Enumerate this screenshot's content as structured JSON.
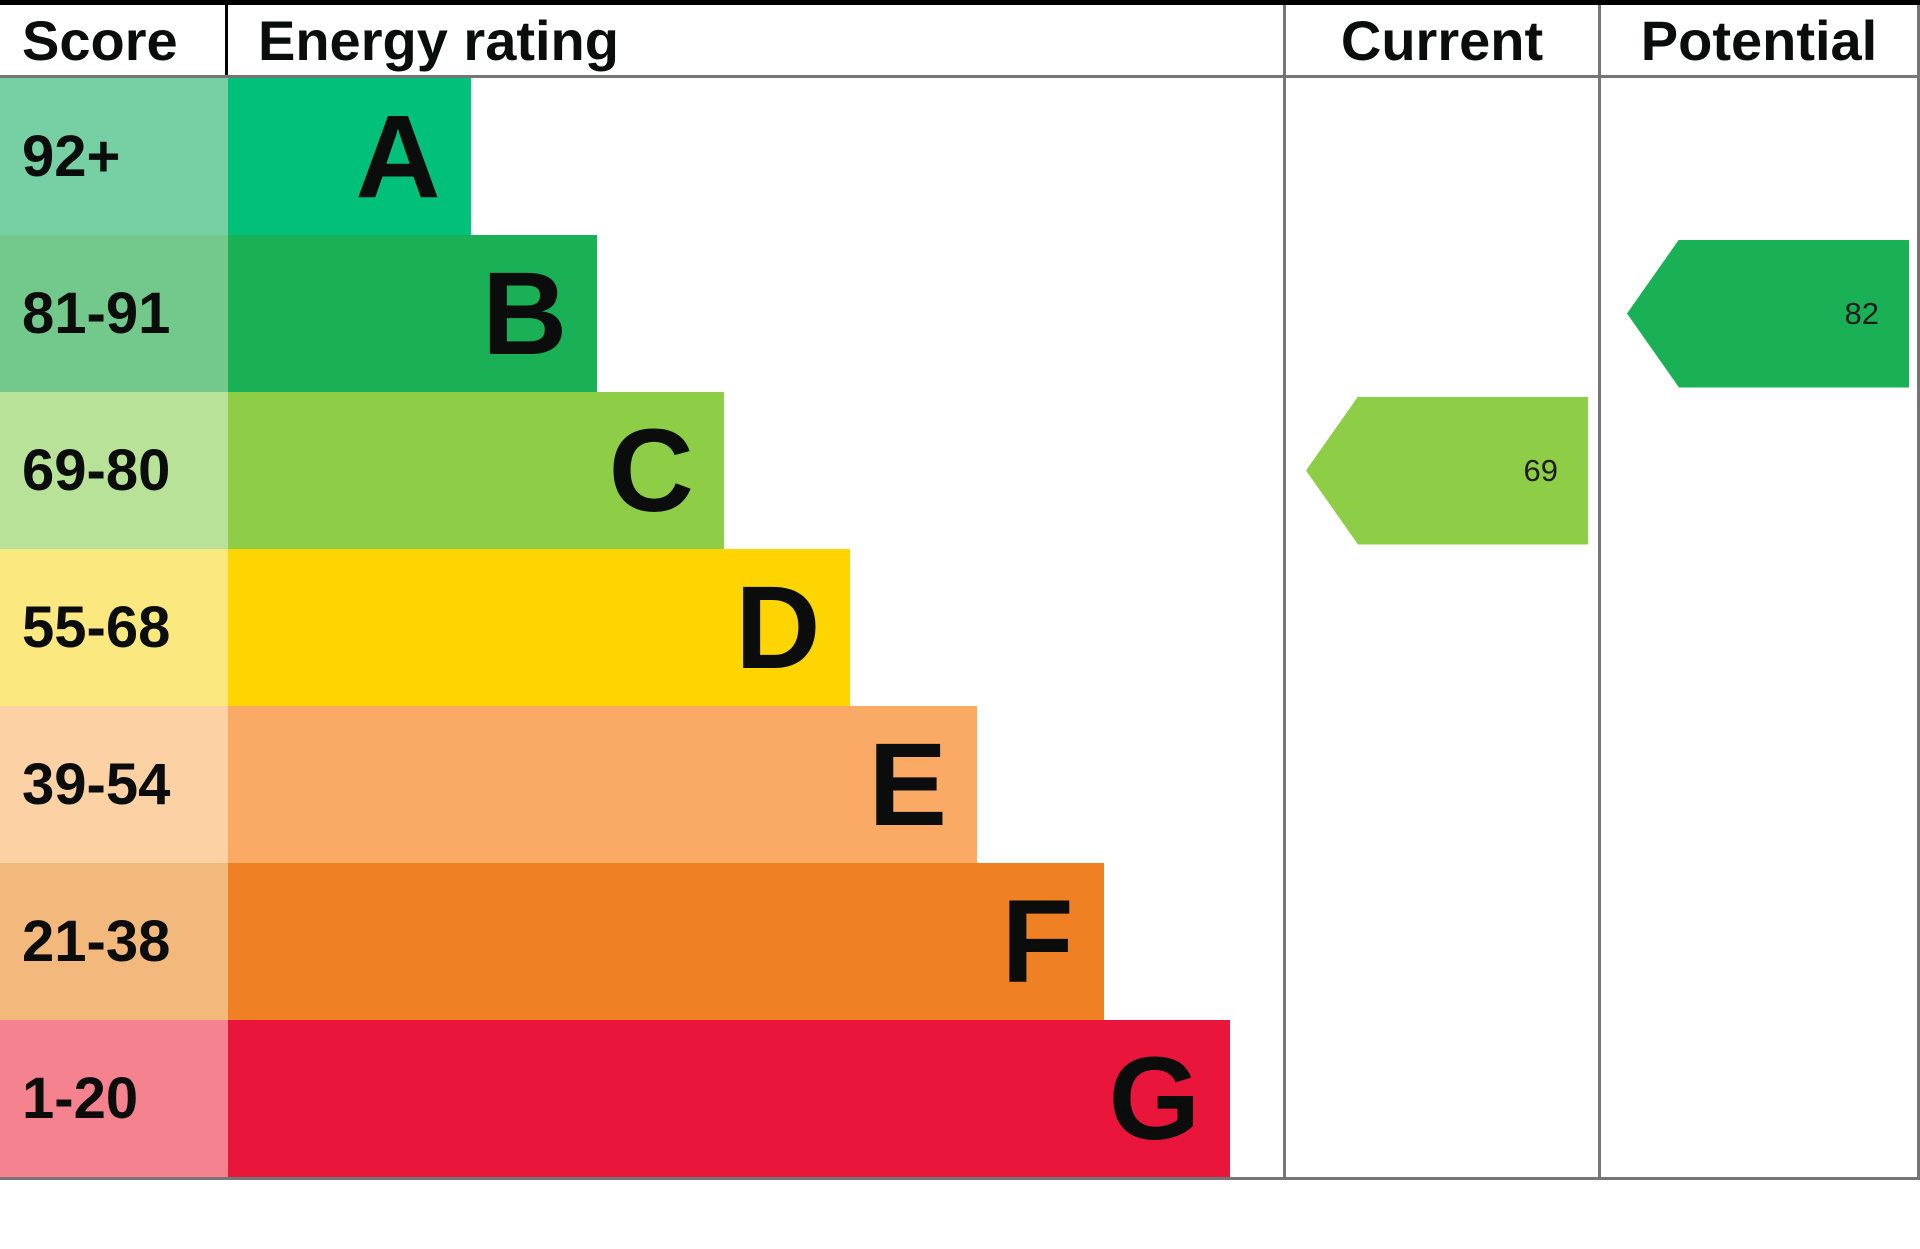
{
  "header": {
    "score": "Score",
    "energy_rating": "Energy rating",
    "current": "Current",
    "potential": "Potential"
  },
  "chart_data": {
    "type": "bar",
    "chart_kind": "epc-energy-rating",
    "title": "Energy rating",
    "columns": [
      "Score",
      "Energy rating",
      "Current",
      "Potential"
    ],
    "bands": [
      {
        "score": "92+",
        "letter": "A",
        "bar_color": "#00c07a",
        "score_bg": "#76d0a3",
        "bar_width_pct": 23
      },
      {
        "score": "81-91",
        "letter": "B",
        "bar_color": "#1ab056",
        "score_bg": "#72c98b",
        "bar_width_pct": 35
      },
      {
        "score": "69-80",
        "letter": "C",
        "bar_color": "#8ece46",
        "score_bg": "#b8e297",
        "bar_width_pct": 47
      },
      {
        "score": "55-68",
        "letter": "D",
        "bar_color": "#ffd500",
        "score_bg": "#fbe97f",
        "bar_width_pct": 59
      },
      {
        "score": "39-54",
        "letter": "E",
        "bar_color": "#fbaa65",
        "score_bg": "#fcd2a5",
        "bar_width_pct": 71
      },
      {
        "score": "21-38",
        "letter": "F",
        "bar_color": "#ef8023",
        "score_bg": "#f3b87b",
        "bar_width_pct": 83
      },
      {
        "score": "1-20",
        "letter": "G",
        "bar_color": "#e9153b",
        "score_bg": "#f4838f",
        "bar_width_pct": 95
      }
    ],
    "current": {
      "value": 69,
      "band": "C",
      "color": "#8ece46"
    },
    "potential": {
      "value": 82,
      "band": "B",
      "color": "#1ab056"
    }
  }
}
